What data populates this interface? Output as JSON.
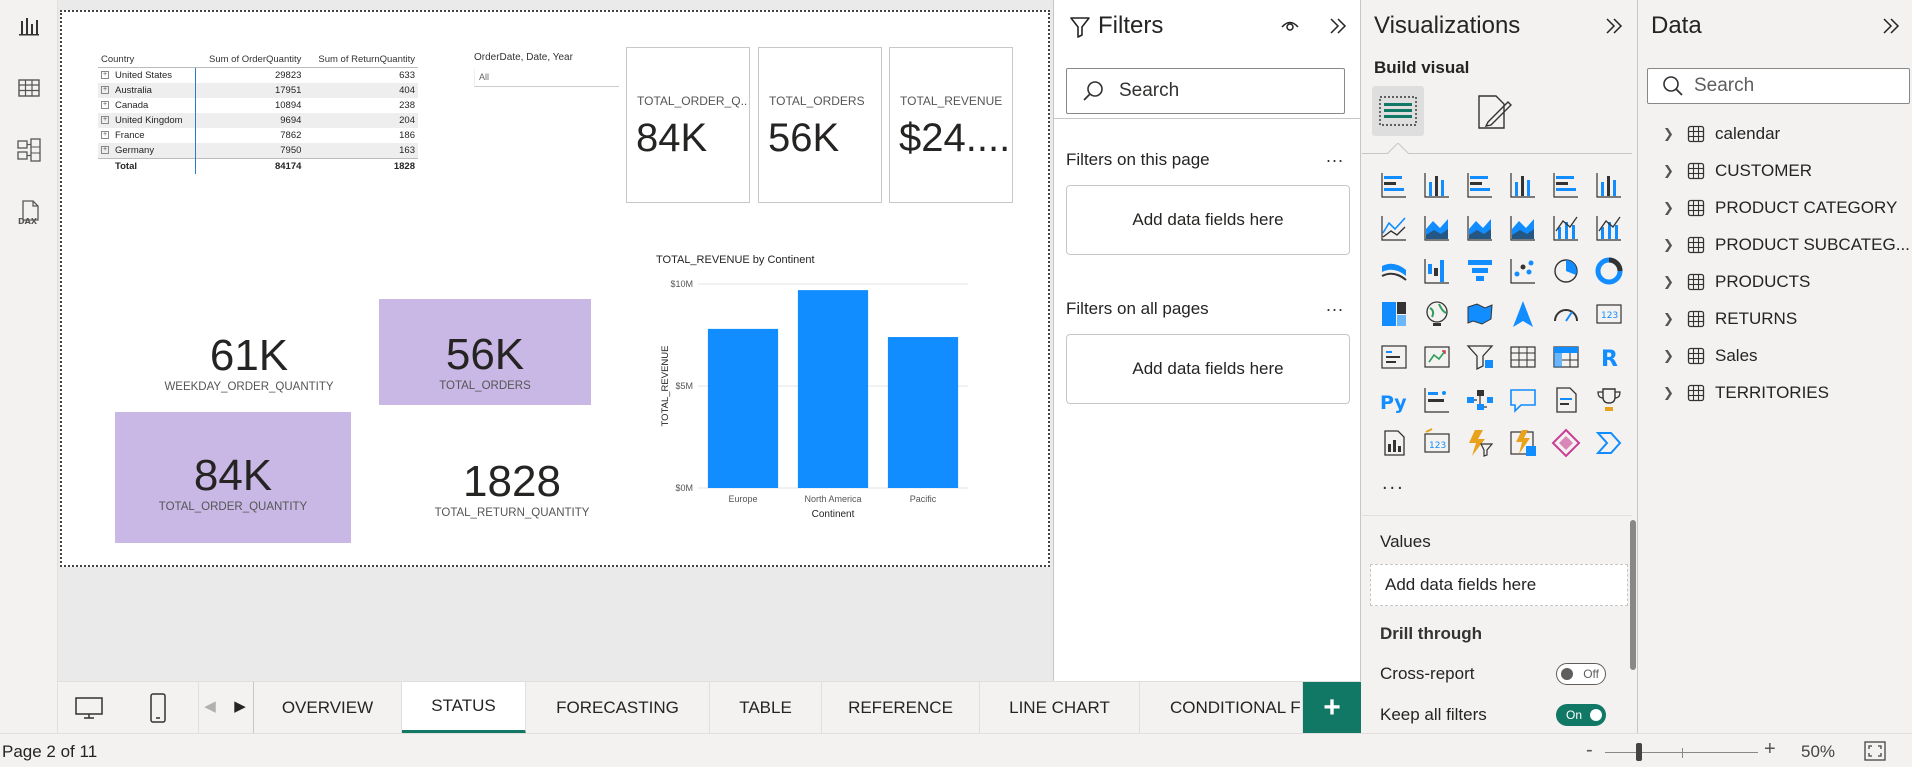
{
  "report": {
    "matrix": {
      "headers": [
        "Country",
        "Sum of OrderQuantity",
        "Sum of ReturnQuantity"
      ],
      "rows": [
        {
          "country": "United States",
          "order": "29823",
          "return": "633"
        },
        {
          "country": "Australia",
          "order": "17951",
          "return": "404"
        },
        {
          "country": "Canada",
          "order": "10894",
          "return": "238"
        },
        {
          "country": "United Kingdom",
          "order": "9694",
          "return": "204"
        },
        {
          "country": "France",
          "order": "7862",
          "return": "186"
        },
        {
          "country": "Germany",
          "order": "7950",
          "return": "163"
        }
      ],
      "total": {
        "label": "Total",
        "order": "84174",
        "return": "1828"
      }
    },
    "slicer": {
      "title": "OrderDate, Date, Year",
      "value": "All"
    },
    "kpi_cards": [
      {
        "label": "TOTAL_ORDER_Q...",
        "value": "84K"
      },
      {
        "label": "TOTAL_ORDERS",
        "value": "56K"
      },
      {
        "label": "TOTAL_REVENUE",
        "value": "$24...."
      }
    ],
    "cards": {
      "weekday": {
        "value": "61K",
        "label": "WEEKDAY_ORDER_QUANTITY"
      },
      "orders": {
        "value": "56K",
        "label": "TOTAL_ORDERS"
      },
      "order_qty": {
        "value": "84K",
        "label": "TOTAL_ORDER_QUANTITY"
      },
      "return_qty": {
        "value": "1828",
        "label": "TOTAL_RETURN_QUANTITY"
      }
    },
    "chart_title": "TOTAL_REVENUE by Continent",
    "colors": {
      "bar": "#118DFF",
      "card_fill": "#C9B8E6",
      "accent": "#117865"
    }
  },
  "chart_data": {
    "type": "bar",
    "title": "TOTAL_REVENUE by Continent",
    "xlabel": "Continent",
    "ylabel": "TOTAL_REVENUE",
    "categories": [
      "Europe",
      "North America",
      "Pacific"
    ],
    "values": [
      7.8,
      9.7,
      7.4
    ],
    "value_unit": "$M",
    "yticks": [
      "$0M",
      "$5M",
      "$10M"
    ],
    "ylim": [
      0,
      10
    ],
    "grid": true
  },
  "filters": {
    "title": "Filters",
    "search_placeholder": "Search",
    "on_this_page": "Filters on this page",
    "on_all_pages": "Filters on all pages",
    "add_fields": "Add data fields here",
    "more": "..."
  },
  "visualizations": {
    "title": "Visualizations",
    "build_visual": "Build visual",
    "more": "...",
    "values_label": "Values",
    "add_fields": "Add data fields here",
    "drill_through": "Drill through",
    "cross_report": "Cross-report",
    "cross_report_state": "Off",
    "keep_all_filters": "Keep all filters",
    "keep_all_filters_state": "On",
    "icons": [
      "stacked-bar-chart-icon",
      "stacked-column-chart-icon",
      "clustered-bar-chart-icon",
      "clustered-column-chart-icon",
      "100-stacked-bar-chart-icon",
      "100-stacked-column-chart-icon",
      "line-chart-icon",
      "area-chart-icon",
      "stacked-area-chart-icon",
      "100-stacked-area-chart-icon",
      "line-and-stacked-column-chart-icon",
      "line-and-clustered-column-chart-icon",
      "ribbon-chart-icon",
      "waterfall-chart-icon",
      "funnel-chart-icon",
      "scatter-chart-icon",
      "pie-chart-icon",
      "donut-chart-icon",
      "treemap-icon",
      "map-icon",
      "filled-map-icon",
      "azure-map-icon",
      "gauge-icon",
      "card-icon",
      "multi-row-card-icon",
      "kpi-icon",
      "slicer-icon",
      "table-icon",
      "matrix-icon",
      "r-visual-icon",
      "python-visual-icon",
      "key-influencers-icon",
      "decomposition-tree-icon",
      "qna-icon",
      "smart-narrative-icon",
      "metrics-icon",
      "paginated-report-icon",
      "new-card-icon",
      "power-apps-icon",
      "power-automate-icon",
      "power-app-diamond-icon",
      "chevron-visual-icon"
    ]
  },
  "data_pane": {
    "title": "Data",
    "search_placeholder": "Search",
    "tables": [
      "calendar",
      "CUSTOMER",
      "PRODUCT CATEGORY",
      "PRODUCT SUBCATEG...",
      "PRODUCTS",
      "RETURNS",
      "Sales",
      "TERRITORIES"
    ]
  },
  "tabs": [
    "OVERVIEW",
    "STATUS",
    "FORECASTING",
    "TABLE",
    "REFERENCE",
    "LINE CHART",
    "CONDITIONAL F"
  ],
  "active_tab": "STATUS",
  "add_tab": "+",
  "status": {
    "page": "Page 2 of 11",
    "zoom": "50%",
    "minus": "-",
    "plus": "+"
  }
}
